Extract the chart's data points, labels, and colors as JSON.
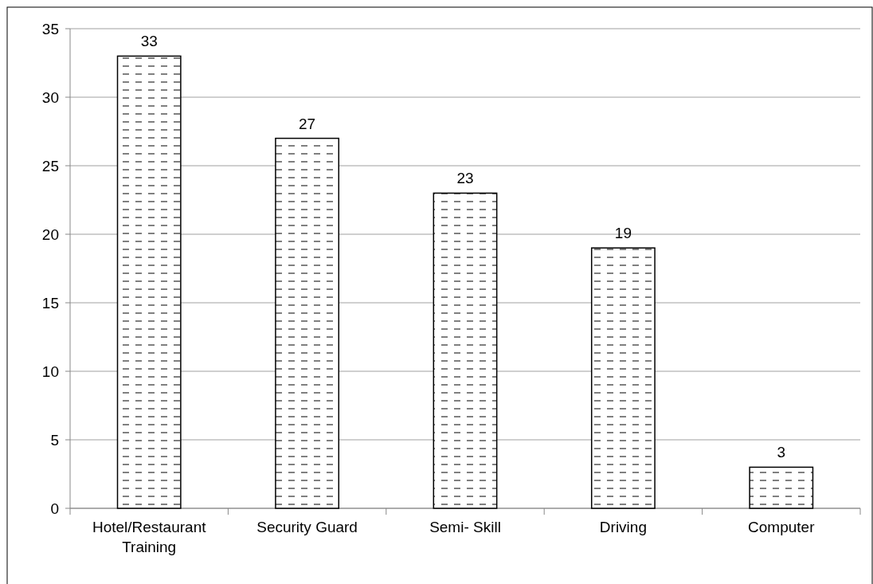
{
  "chart_data": {
    "type": "bar",
    "categories": [
      "Hotel/Restaurant Training",
      "Security Guard",
      "Semi- Skill",
      "Driving",
      "Computer"
    ],
    "values": [
      33,
      27,
      23,
      19,
      3
    ],
    "color": "#000000",
    "ylim": [
      0,
      35
    ],
    "yticks": [
      0,
      5,
      10,
      15,
      20,
      25,
      30,
      35
    ],
    "grid": "y",
    "data_labels": true
  }
}
